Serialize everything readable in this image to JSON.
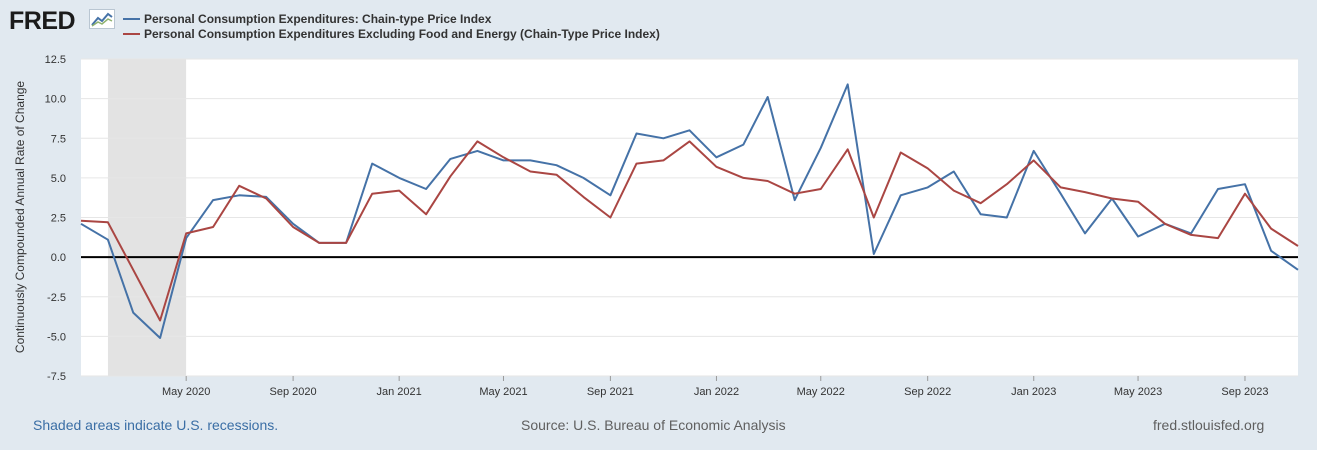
{
  "header": {
    "logo_text": "FRED",
    "logo_icon": "chart-line-icon"
  },
  "footer": {
    "recession_note": "Shaded areas indicate U.S. recessions.",
    "source": "Source: U.S. Bureau of Economic Analysis",
    "url": "fred.stlouisfed.org"
  },
  "chart_data": {
    "type": "line",
    "title": "",
    "ylabel": "Continuously Compounded Annual Rate of Change",
    "xlabel": "",
    "ylim": [
      -7.5,
      12.5
    ],
    "yticks": [
      -7.5,
      -5.0,
      -2.5,
      0.0,
      2.5,
      5.0,
      7.5,
      10.0,
      12.5
    ],
    "ytick_labels": [
      "-7.5",
      "-5.0",
      "-2.5",
      "0.0",
      "2.5",
      "5.0",
      "7.5",
      "10.0",
      "12.5"
    ],
    "xlim": [
      "2020-01-01",
      "2023-11-01"
    ],
    "xticks": [
      "2020-05-01",
      "2020-09-01",
      "2021-01-01",
      "2021-05-01",
      "2021-09-01",
      "2022-01-01",
      "2022-05-01",
      "2022-09-01",
      "2023-01-01",
      "2023-05-01",
      "2023-09-01"
    ],
    "xtick_labels": [
      "May 2020",
      "Sep 2020",
      "Jan 2021",
      "May 2021",
      "Sep 2021",
      "Jan 2022",
      "May 2022",
      "Sep 2022",
      "Jan 2023",
      "May 2023",
      "Sep 2023"
    ],
    "grid": true,
    "legend_position": "top",
    "recessions": [
      {
        "start": "2020-02-01",
        "end": "2020-04-01"
      }
    ],
    "reference_line": 0,
    "x": [
      "2020-01-01",
      "2020-02-01",
      "2020-03-01",
      "2020-04-01",
      "2020-05-01",
      "2020-06-01",
      "2020-07-01",
      "2020-08-01",
      "2020-09-01",
      "2020-10-01",
      "2020-11-01",
      "2020-12-01",
      "2021-01-01",
      "2021-02-01",
      "2021-03-01",
      "2021-04-01",
      "2021-05-01",
      "2021-06-01",
      "2021-07-01",
      "2021-08-01",
      "2021-09-01",
      "2021-10-01",
      "2021-11-01",
      "2021-12-01",
      "2022-01-01",
      "2022-02-01",
      "2022-03-01",
      "2022-04-01",
      "2022-05-01",
      "2022-06-01",
      "2022-07-01",
      "2022-08-01",
      "2022-09-01",
      "2022-10-01",
      "2022-11-01",
      "2022-12-01",
      "2023-01-01",
      "2023-02-01",
      "2023-03-01",
      "2023-04-01",
      "2023-05-01",
      "2023-06-01",
      "2023-07-01",
      "2023-08-01",
      "2023-09-01",
      "2023-10-01",
      "2023-11-01"
    ],
    "series": [
      {
        "name": "Personal Consumption Expenditures: Chain-type Price Index",
        "color": "#4572a7",
        "values": [
          2.1,
          1.1,
          -3.5,
          -5.1,
          1.2,
          3.6,
          3.9,
          3.8,
          2.1,
          0.9,
          0.9,
          5.9,
          5.0,
          4.3,
          6.2,
          6.7,
          6.1,
          6.1,
          5.8,
          5.0,
          3.9,
          7.8,
          7.5,
          8.0,
          6.3,
          7.1,
          10.1,
          3.6,
          6.9,
          10.9,
          0.2,
          3.9,
          4.4,
          5.4,
          2.7,
          2.5,
          6.7,
          4.0,
          1.5,
          3.7,
          1.3,
          2.1,
          1.5,
          4.3,
          4.6,
          0.4,
          -0.8
        ]
      },
      {
        "name": "Personal Consumption Expenditures Excluding Food and Energy (Chain-Type Price Index)",
        "color": "#aa4643",
        "values": [
          2.3,
          2.2,
          -0.8,
          -4.0,
          1.5,
          1.9,
          4.5,
          3.7,
          1.9,
          0.9,
          0.9,
          4.0,
          4.2,
          2.7,
          5.1,
          7.3,
          6.3,
          5.4,
          5.2,
          3.8,
          2.5,
          5.9,
          6.1,
          7.3,
          5.7,
          5.0,
          4.8,
          4.0,
          4.3,
          6.8,
          2.5,
          6.6,
          5.6,
          4.2,
          3.4,
          4.6,
          6.1,
          4.4,
          4.1,
          3.7,
          3.5,
          2.1,
          1.4,
          1.2,
          4.0,
          1.8,
          0.7
        ]
      }
    ]
  }
}
